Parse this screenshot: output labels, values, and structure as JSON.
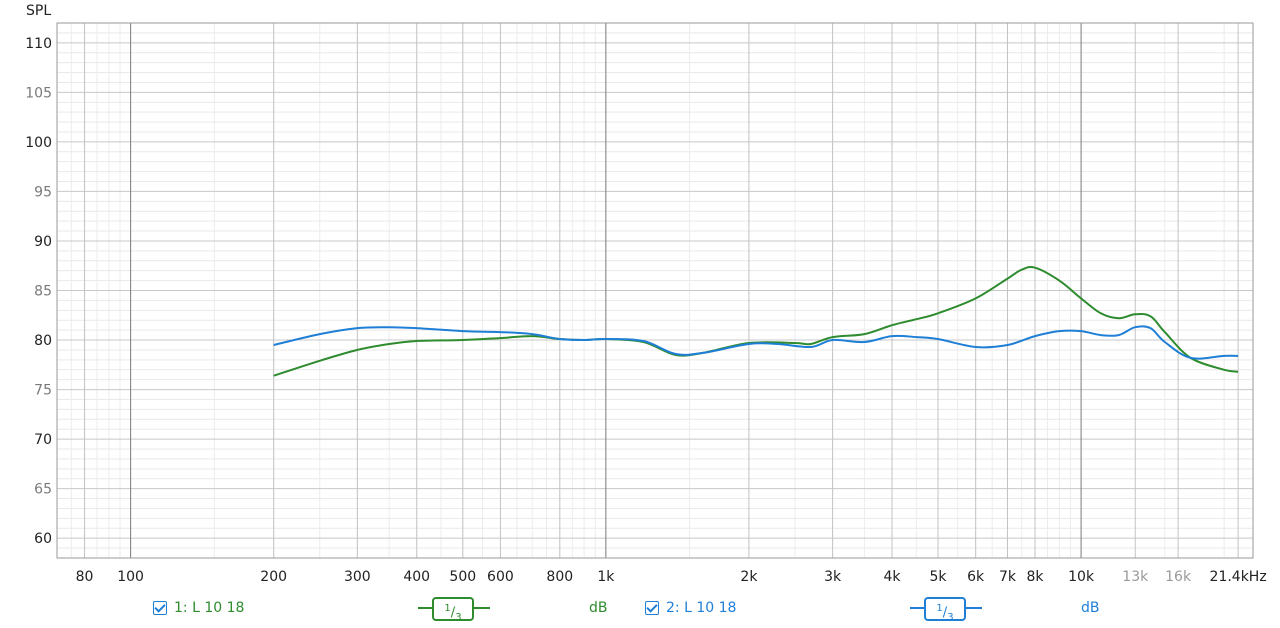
{
  "chart_data": {
    "type": "line",
    "ylabel": "SPL",
    "ylim": [
      58,
      112
    ],
    "yticks": [
      110,
      105,
      100,
      95,
      90,
      85,
      80,
      75,
      70,
      65,
      60
    ],
    "xscale": "log",
    "xlim": [
      70,
      23000
    ],
    "xticks": [
      {
        "v": 80,
        "label": "80",
        "muted": false
      },
      {
        "v": 100,
        "label": "100",
        "muted": false
      },
      {
        "v": 200,
        "label": "200",
        "muted": false
      },
      {
        "v": 300,
        "label": "300",
        "muted": false
      },
      {
        "v": 400,
        "label": "400",
        "muted": false
      },
      {
        "v": 500,
        "label": "500",
        "muted": false
      },
      {
        "v": 600,
        "label": "600",
        "muted": false
      },
      {
        "v": 800,
        "label": "800",
        "muted": false
      },
      {
        "v": 1000,
        "label": "1k",
        "muted": false
      },
      {
        "v": 2000,
        "label": "2k",
        "muted": false
      },
      {
        "v": 3000,
        "label": "3k",
        "muted": false
      },
      {
        "v": 4000,
        "label": "4k",
        "muted": false
      },
      {
        "v": 5000,
        "label": "5k",
        "muted": false
      },
      {
        "v": 6000,
        "label": "6k",
        "muted": false
      },
      {
        "v": 7000,
        "label": "7k",
        "muted": false
      },
      {
        "v": 8000,
        "label": "8k",
        "muted": false
      },
      {
        "v": 10000,
        "label": "10k",
        "muted": false
      },
      {
        "v": 13000,
        "label": "13k",
        "muted": true
      },
      {
        "v": 16000,
        "label": "16k",
        "muted": true
      },
      {
        "v": 21400,
        "label": "21.4kHz",
        "muted": false
      }
    ],
    "grid": true,
    "series": [
      {
        "name": "1: L 10 18",
        "color": "#2e8b2e",
        "points": [
          [
            200,
            76.4
          ],
          [
            250,
            77.9
          ],
          [
            300,
            79.0
          ],
          [
            350,
            79.6
          ],
          [
            400,
            79.9
          ],
          [
            500,
            80.0
          ],
          [
            600,
            80.2
          ],
          [
            700,
            80.4
          ],
          [
            800,
            80.1
          ],
          [
            900,
            80.0
          ],
          [
            1000,
            80.1
          ],
          [
            1200,
            79.8
          ],
          [
            1400,
            78.5
          ],
          [
            1600,
            78.7
          ],
          [
            2000,
            79.7
          ],
          [
            2500,
            79.7
          ],
          [
            2700,
            79.6
          ],
          [
            3000,
            80.3
          ],
          [
            3500,
            80.6
          ],
          [
            4000,
            81.5
          ],
          [
            4500,
            82.1
          ],
          [
            5000,
            82.7
          ],
          [
            6000,
            84.2
          ],
          [
            7000,
            86.2
          ],
          [
            7500,
            87.1
          ],
          [
            8000,
            87.3
          ],
          [
            9000,
            86.0
          ],
          [
            10000,
            84.2
          ],
          [
            11000,
            82.7
          ],
          [
            12000,
            82.2
          ],
          [
            13000,
            82.6
          ],
          [
            14000,
            82.4
          ],
          [
            15000,
            80.8
          ],
          [
            17000,
            78.2
          ],
          [
            20000,
            77.0
          ],
          [
            21400,
            76.8
          ]
        ]
      },
      {
        "name": "2: L 10 18",
        "color": "#1f7fd6",
        "points": [
          [
            200,
            79.5
          ],
          [
            250,
            80.6
          ],
          [
            300,
            81.2
          ],
          [
            350,
            81.3
          ],
          [
            400,
            81.2
          ],
          [
            500,
            80.9
          ],
          [
            600,
            80.8
          ],
          [
            700,
            80.6
          ],
          [
            800,
            80.1
          ],
          [
            900,
            80.0
          ],
          [
            1000,
            80.1
          ],
          [
            1200,
            79.9
          ],
          [
            1400,
            78.6
          ],
          [
            1600,
            78.7
          ],
          [
            2000,
            79.6
          ],
          [
            2300,
            79.6
          ],
          [
            2700,
            79.3
          ],
          [
            3000,
            80.0
          ],
          [
            3500,
            79.8
          ],
          [
            4000,
            80.4
          ],
          [
            4500,
            80.3
          ],
          [
            5000,
            80.1
          ],
          [
            6000,
            79.3
          ],
          [
            7000,
            79.5
          ],
          [
            8000,
            80.4
          ],
          [
            9000,
            80.9
          ],
          [
            10000,
            80.9
          ],
          [
            11000,
            80.5
          ],
          [
            12000,
            80.5
          ],
          [
            13000,
            81.3
          ],
          [
            14000,
            81.2
          ],
          [
            15000,
            79.8
          ],
          [
            17000,
            78.2
          ],
          [
            20000,
            78.4
          ],
          [
            21400,
            78.4
          ]
        ]
      }
    ]
  },
  "legend": {
    "series1": {
      "label": "1: L 10 18",
      "smoothing_num": "1",
      "smoothing_den": "3",
      "unit": "dB",
      "color": "#2e8b2e"
    },
    "series2": {
      "label": "2: L 10 18",
      "smoothing_num": "1",
      "smoothing_den": "3",
      "unit": "dB",
      "color": "#1f7fd6"
    }
  }
}
